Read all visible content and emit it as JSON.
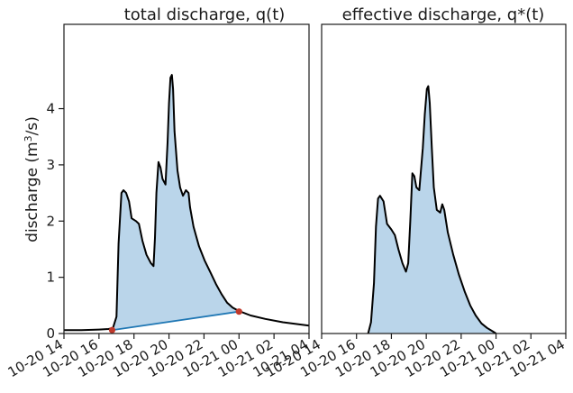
{
  "chart_data": [
    {
      "type": "area",
      "title": "total discharge, q(t)",
      "ylabel_main": "discharge (m",
      "ylabel_sup": "3",
      "ylabel_tail": "/s)",
      "xlim": [
        "2021-10-20 14:00",
        "2021-10-21 04:00"
      ],
      "ylim": [
        0,
        5.5
      ],
      "yticks": [
        {
          "value": 0,
          "label": "0"
        },
        {
          "value": 1,
          "label": "1"
        },
        {
          "value": 2,
          "label": "2"
        },
        {
          "value": 3,
          "label": "3"
        },
        {
          "value": 4,
          "label": "4"
        }
      ],
      "xticks": [
        {
          "value": "2021-10-20 14:00",
          "label": "10-20 14"
        },
        {
          "value": "2021-10-20 16:00",
          "label": "10-20 16"
        },
        {
          "value": "2021-10-20 18:00",
          "label": "10-20 18"
        },
        {
          "value": "2021-10-20 20:00",
          "label": "10-20 20"
        },
        {
          "value": "2021-10-20 22:00",
          "label": "10-20 22"
        },
        {
          "value": "2021-10-21 00:00",
          "label": "10-21 00"
        },
        {
          "value": "2021-10-21 02:00",
          "label": "10-21 02"
        },
        {
          "value": "2021-10-21 04:00",
          "label": "10-21 04"
        }
      ],
      "series": [
        {
          "points": [
            [
              "2021-10-20 14:00",
              0.06
            ],
            [
              "2021-10-20 15:00",
              0.06
            ],
            [
              "2021-10-20 16:00",
              0.07
            ],
            [
              "2021-10-20 16:33",
              0.08
            ],
            [
              "2021-10-20 16:48",
              0.1
            ],
            [
              "2021-10-20 17:00",
              0.3
            ],
            [
              "2021-10-20 17:07",
              1.6
            ],
            [
              "2021-10-20 17:17",
              2.5
            ],
            [
              "2021-10-20 17:24",
              2.55
            ],
            [
              "2021-10-20 17:33",
              2.5
            ],
            [
              "2021-10-20 17:43",
              2.35
            ],
            [
              "2021-10-20 17:52",
              2.05
            ],
            [
              "2021-10-20 18:07",
              2.0
            ],
            [
              "2021-10-20 18:17",
              1.95
            ],
            [
              "2021-10-20 18:29",
              1.65
            ],
            [
              "2021-10-20 18:43",
              1.4
            ],
            [
              "2021-10-20 18:58",
              1.25
            ],
            [
              "2021-10-20 19:07",
              1.2
            ],
            [
              "2021-10-20 19:12",
              1.7
            ],
            [
              "2021-10-20 19:17",
              2.5
            ],
            [
              "2021-10-20 19:24",
              3.05
            ],
            [
              "2021-10-20 19:31",
              2.95
            ],
            [
              "2021-10-20 19:38",
              2.75
            ],
            [
              "2021-10-20 19:48",
              2.65
            ],
            [
              "2021-10-20 19:55",
              3.4
            ],
            [
              "2021-10-20 20:00",
              4.1
            ],
            [
              "2021-10-20 20:05",
              4.55
            ],
            [
              "2021-10-20 20:10",
              4.6
            ],
            [
              "2021-10-20 20:14",
              4.35
            ],
            [
              "2021-10-20 20:19",
              3.6
            ],
            [
              "2021-10-20 20:29",
              2.9
            ],
            [
              "2021-10-20 20:38",
              2.6
            ],
            [
              "2021-10-20 20:48",
              2.45
            ],
            [
              "2021-10-20 20:58",
              2.55
            ],
            [
              "2021-10-20 21:07",
              2.5
            ],
            [
              "2021-10-20 21:12",
              2.25
            ],
            [
              "2021-10-20 21:24",
              1.9
            ],
            [
              "2021-10-20 21:43",
              1.55
            ],
            [
              "2021-10-20 22:02",
              1.3
            ],
            [
              "2021-10-20 22:21",
              1.1
            ],
            [
              "2021-10-20 22:41",
              0.88
            ],
            [
              "2021-10-20 23:00",
              0.7
            ],
            [
              "2021-10-20 23:19",
              0.55
            ],
            [
              "2021-10-20 23:38",
              0.46
            ],
            [
              "2021-10-21 00:00",
              0.4
            ],
            [
              "2021-10-21 00:40",
              0.32
            ],
            [
              "2021-10-21 01:30",
              0.26
            ],
            [
              "2021-10-21 02:30",
              0.2
            ],
            [
              "2021-10-21 03:30",
              0.16
            ],
            [
              "2021-10-21 04:00",
              0.14
            ]
          ]
        }
      ],
      "baseline": {
        "start": [
          "2021-10-20 16:45",
          0.06
        ],
        "end": [
          "2021-10-21 00:00",
          0.39
        ]
      }
    },
    {
      "type": "area",
      "title": "effective discharge, q*(t)",
      "xlim": [
        "2021-10-20 14:00",
        "2021-10-21 04:00"
      ],
      "ylim": [
        0,
        5.5
      ],
      "xticks": [
        {
          "value": "2021-10-20 14:00",
          "label": "10-20 14"
        },
        {
          "value": "2021-10-20 16:00",
          "label": "10-20 16"
        },
        {
          "value": "2021-10-20 18:00",
          "label": "10-20 18"
        },
        {
          "value": "2021-10-20 20:00",
          "label": "10-20 20"
        },
        {
          "value": "2021-10-20 22:00",
          "label": "10-20 22"
        },
        {
          "value": "2021-10-21 00:00",
          "label": "10-21 00"
        },
        {
          "value": "2021-10-21 02:00",
          "label": "10-21 02"
        },
        {
          "value": "2021-10-21 04:00",
          "label": "10-21 04"
        }
      ],
      "series": [
        {
          "points": [
            [
              "2021-10-20 16:40",
              0.0
            ],
            [
              "2021-10-20 16:50",
              0.2
            ],
            [
              "2021-10-20 17:00",
              0.9
            ],
            [
              "2021-10-20 17:07",
              1.9
            ],
            [
              "2021-10-20 17:14",
              2.4
            ],
            [
              "2021-10-20 17:21",
              2.45
            ],
            [
              "2021-10-20 17:33",
              2.35
            ],
            [
              "2021-10-20 17:45",
              1.95
            ],
            [
              "2021-10-20 18:00",
              1.85
            ],
            [
              "2021-10-20 18:12",
              1.75
            ],
            [
              "2021-10-20 18:24",
              1.5
            ],
            [
              "2021-10-20 18:38",
              1.25
            ],
            [
              "2021-10-20 18:50",
              1.1
            ],
            [
              "2021-10-20 18:58",
              1.25
            ],
            [
              "2021-10-20 19:05",
              2.0
            ],
            [
              "2021-10-20 19:12",
              2.85
            ],
            [
              "2021-10-20 19:19",
              2.8
            ],
            [
              "2021-10-20 19:26",
              2.6
            ],
            [
              "2021-10-20 19:36",
              2.55
            ],
            [
              "2021-10-20 19:48",
              3.3
            ],
            [
              "2021-10-20 19:55",
              3.9
            ],
            [
              "2021-10-20 20:02",
              4.35
            ],
            [
              "2021-10-20 20:07",
              4.4
            ],
            [
              "2021-10-20 20:12",
              4.1
            ],
            [
              "2021-10-20 20:19",
              3.3
            ],
            [
              "2021-10-20 20:26",
              2.6
            ],
            [
              "2021-10-20 20:36",
              2.2
            ],
            [
              "2021-10-20 20:48",
              2.15
            ],
            [
              "2021-10-20 20:55",
              2.3
            ],
            [
              "2021-10-20 21:02",
              2.2
            ],
            [
              "2021-10-20 21:14",
              1.8
            ],
            [
              "2021-10-20 21:33",
              1.4
            ],
            [
              "2021-10-20 21:52",
              1.05
            ],
            [
              "2021-10-20 22:12",
              0.75
            ],
            [
              "2021-10-20 22:31",
              0.5
            ],
            [
              "2021-10-20 22:50",
              0.32
            ],
            [
              "2021-10-20 23:10",
              0.18
            ],
            [
              "2021-10-20 23:29",
              0.1
            ],
            [
              "2021-10-20 23:48",
              0.04
            ],
            [
              "2021-10-21 00:00",
              0.0
            ]
          ]
        }
      ]
    }
  ],
  "colors": {
    "fill": "#bad5ea",
    "line": "#000000",
    "baseline": "#1f77b4",
    "marker": "#c0392b",
    "axes": "#1a1a1a"
  }
}
